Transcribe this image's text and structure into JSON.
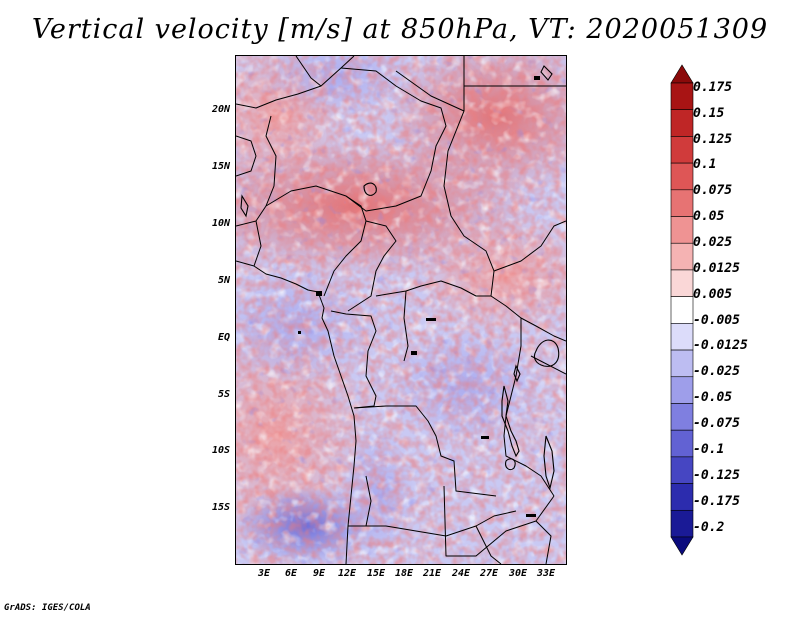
{
  "title": "Vertical velocity [m/s] at 850hPa, VT: 2020051309",
  "footer": "GrADS: IGES/COLA",
  "map": {
    "variable": "Vertical velocity",
    "units": "m/s",
    "level": "850hPa",
    "valid_time": "2020051309",
    "lat_labels": [
      "20N",
      "15N",
      "10N",
      "5N",
      "EQ",
      "5S",
      "10S",
      "15S"
    ],
    "lon_labels": [
      "3E",
      "6E",
      "9E",
      "12E",
      "15E",
      "18E",
      "21E",
      "24E",
      "27E",
      "30E",
      "33E"
    ]
  },
  "colorbar": {
    "labels": [
      "0.175",
      "0.15",
      "0.125",
      "0.1",
      "0.075",
      "0.05",
      "0.025",
      "0.0125",
      "0.005",
      "-0.005",
      "-0.0125",
      "-0.025",
      "-0.05",
      "-0.075",
      "-0.1",
      "-0.125",
      "-0.175",
      "-0.2"
    ],
    "colors": [
      "#8b0a0a",
      "#a81414",
      "#bf2626",
      "#d03b3b",
      "#de5656",
      "#e77373",
      "#ef9393",
      "#f5b3b3",
      "#fad7d7",
      "#ffffff",
      "#dcdcfa",
      "#bdbdf2",
      "#9e9eea",
      "#7f7fe0",
      "#6262d3",
      "#4646c2",
      "#2c2cae",
      "#1a1a96",
      "#0b0b7d"
    ]
  }
}
